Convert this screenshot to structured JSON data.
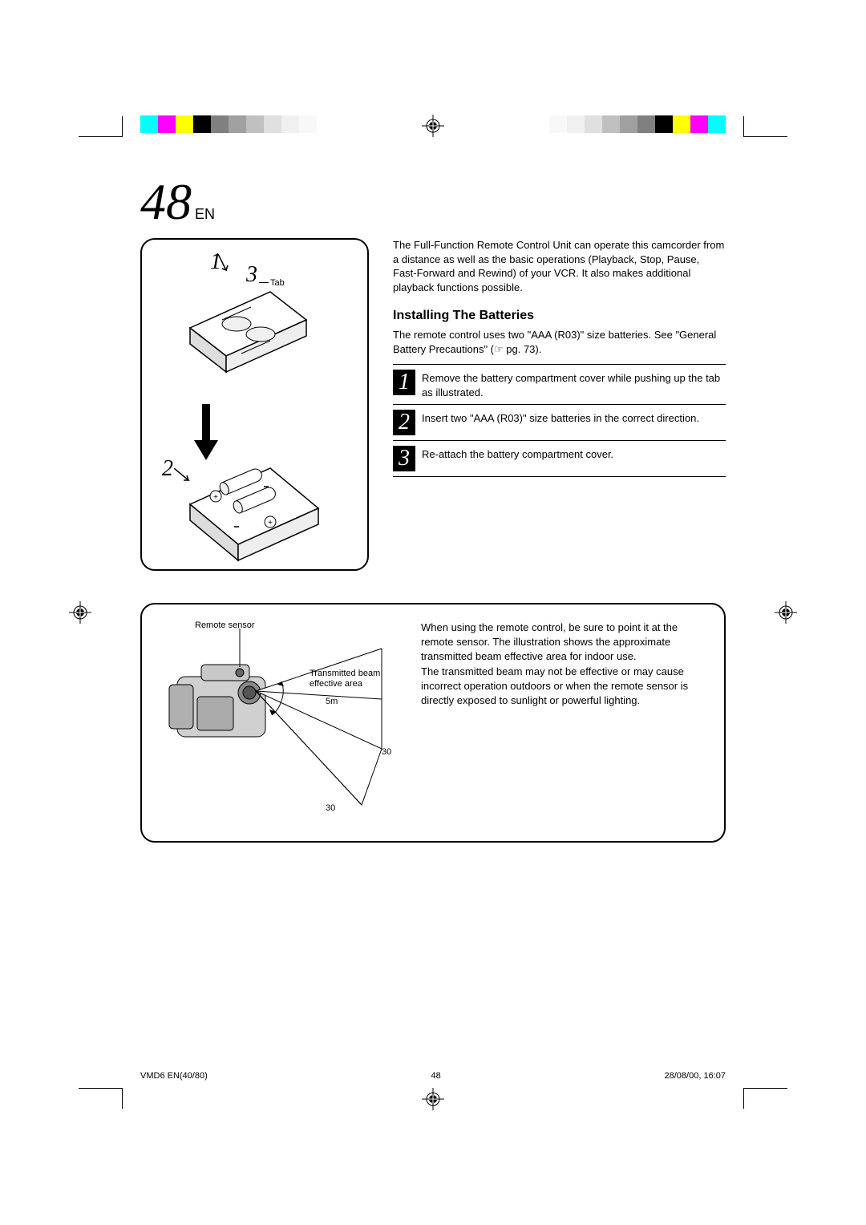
{
  "page_number": "48",
  "page_lang": "EN",
  "color_bar": [
    "#00ffff",
    "#ff00ff",
    "#ffff00",
    "#000000",
    "#808080",
    "#a0a0a0",
    "#c0c0c0",
    "#e0e0e0",
    "#f0f0f0",
    "#f8f8f8",
    "#ffffff"
  ],
  "intro_text": "The Full-Function Remote Control Unit can operate this camcorder from a distance as well as the basic operations (Playback, Stop, Pause, Fast-Forward and Rewind) of your VCR. It also makes additional playback functions possible.",
  "section_title": "Installing The Batteries",
  "section_intro": "The remote control uses two \"AAA (R03)\" size batteries. See \"General Battery Precautions\" (☞ pg. 73).",
  "steps": [
    {
      "n": "1",
      "text": "Remove the battery compartment cover while pushing up the tab as illustrated."
    },
    {
      "n": "2",
      "text": "Insert two \"AAA (R03)\" size batteries in the correct direction."
    },
    {
      "n": "3",
      "text": "Re-attach the battery compartment cover."
    }
  ],
  "illustration": {
    "step1": "1",
    "step2": "2",
    "step3": "3",
    "tab_label": "Tab"
  },
  "lower": {
    "remote_sensor_label": "Remote sensor",
    "beam_label": "Transmitted beam effective area",
    "distance": "5m",
    "angle1": "30",
    "angle2": "30",
    "text1": "When using the remote control, be sure to point it at the remote sensor. The illustration shows the approximate transmitted beam effective area for indoor use.",
    "text2": "The transmitted beam may not be effective or may cause incorrect operation outdoors or when the remote sensor is directly exposed to sunlight or powerful lighting."
  },
  "footer": {
    "doc_id": "VMD6 EN(40/80)",
    "page": "48",
    "date": "28/08/00, 16:07"
  }
}
